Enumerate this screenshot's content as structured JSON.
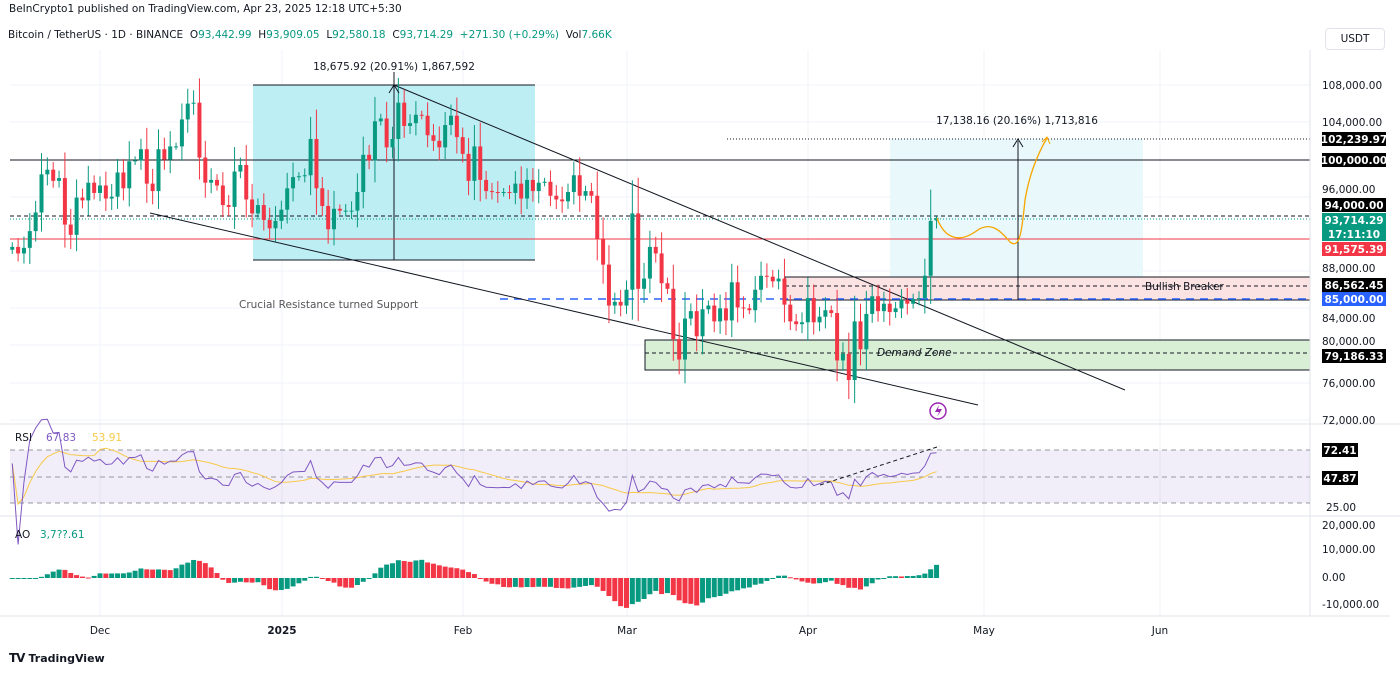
{
  "publisher": "BeInCrypto1 published on TradingView.com, Apr 23, 2025 12:18 UTC+5:30",
  "legend": {
    "symbol": "Bitcoin / TetherUS · 1D · BINANCE",
    "o_label": "O",
    "o": "93,442.99",
    "h_label": "H",
    "h": "93,909.05",
    "l_label": "L",
    "l": "92,580.18",
    "c_label": "C",
    "c": "93,714.29",
    "change": "+271.30 (+0.29%)",
    "vol_label": "Vol",
    "vol": "7.66K"
  },
  "currency": "USDT",
  "footer": "TradingView",
  "colors": {
    "up": "#089981",
    "down": "#f23645",
    "rsi": "#7e57c2",
    "rsi_ma": "#f7c948",
    "projection": "#f7a600",
    "blue_level": "#2962ff"
  },
  "annotations": {
    "left_measure": "18,675.92 (20.91%) 1,867,592",
    "right_measure": "17,138.16 (20.16%) 1,713,816",
    "support_text": "Crucial Resistance turned Support",
    "breaker_text": "Bullish Breaker",
    "demand_text": "Demand Zone"
  },
  "price_axis": {
    "ticks": [
      "108,000.00",
      "104,000.00",
      "96,000.00",
      "88,000.00",
      "84,000.00",
      "80,000.00",
      "76,000.00",
      "72,000.00"
    ],
    "tags": {
      "target": "102,239.97",
      "resistance": "100,000.00",
      "level_94": "94,000.00",
      "last_price": "93,714.29",
      "countdown": "17:11:10",
      "prev_close": "91,575.39",
      "breaker": "86,562.45",
      "support": "85,000.00",
      "demand": "79,186.33"
    }
  },
  "rsi": {
    "label": "RSI",
    "value": "67.83",
    "ma_value": "53.91",
    "tag_high": "72.41",
    "tag_ma": "47.87",
    "tick": "25.00"
  },
  "ao": {
    "label": "AO",
    "value": "3,7??.61",
    "ticks": [
      "20,000.00",
      "10,000.00",
      "0.00",
      "-10,000.00"
    ]
  },
  "time_axis": [
    "Dec",
    "2025",
    "Feb",
    "Mar",
    "Apr",
    "May",
    "Jun"
  ],
  "chart_data": {
    "type": "candlestick",
    "interval": "1D",
    "first_date": "2024-11-16",
    "ylim": [
      72000,
      110000
    ],
    "closes": [
      90.6,
      89.9,
      90.5,
      92.3,
      94.3,
      98.4,
      98.9,
      97.7,
      98.0,
      93.0,
      91.9,
      95.9,
      95.6,
      97.5,
      96.4,
      97.2,
      95.8,
      96.0,
      98.6,
      96.9,
      99.8,
      99.9,
      101.1,
      97.4,
      96.6,
      101.1,
      100.0,
      101.4,
      101.4,
      104.3,
      106.0,
      106.1,
      100.2,
      97.5,
      97.8,
      97.2,
      95.1,
      94.9,
      98.7,
      99.4,
      95.7,
      94.2,
      95.1,
      93.5,
      92.6,
      93.4,
      94.6,
      96.9,
      98.1,
      98.2,
      98.3,
      102.2,
      96.9,
      95.0,
      92.5,
      94.7,
      94.5,
      94.5,
      94.5,
      96.5,
      100.5,
      99.9,
      104.1,
      104.4,
      101.3,
      102.2,
      106.1,
      103.6,
      103.9,
      104.8,
      104.7,
      102.6,
      102.0,
      101.3,
      103.7,
      104.7,
      102.4,
      100.6,
      97.7,
      101.4,
      97.8,
      96.6,
      96.5,
      96.4,
      96.5,
      96.4,
      97.4,
      95.8,
      97.8,
      96.6,
      97.5,
      97.6,
      96.1,
      95.7,
      95.5,
      96.5,
      98.3,
      96.1,
      96.6,
      96.1,
      91.5,
      88.7,
      84.3,
      84.7,
      84.3,
      86.0,
      94.2,
      86.1,
      87.2,
      90.6,
      89.9,
      86.7,
      86.1,
      80.7,
      78.5,
      82.9,
      83.7,
      81.0,
      83.9,
      84.3,
      82.6,
      84.0,
      82.7,
      86.8,
      84.1,
      84.0,
      83.8,
      86.0,
      87.5,
      87.4,
      86.9,
      87.2,
      84.4,
      82.6,
      82.3,
      82.5,
      85.1,
      82.5,
      83.1,
      83.8,
      83.5,
      78.4,
      79.1,
      76.3,
      82.6,
      79.6,
      83.4,
      85.3,
      83.7,
      84.5,
      83.6,
      84.0,
      84.9,
      84.5,
      85.0,
      85.1,
      87.5,
      93.4,
      93.7
    ],
    "closes_unit": "thousand USDT",
    "last_candle": {
      "open": 93442.99,
      "high": 93909.05,
      "low": 92580.18,
      "close": 93714.29
    },
    "levels": [
      102239.97,
      100000,
      94000,
      93714.29,
      91575.39,
      86562.45,
      85000,
      79186.33
    ],
    "indicators": [
      "RSI",
      "AO"
    ]
  }
}
